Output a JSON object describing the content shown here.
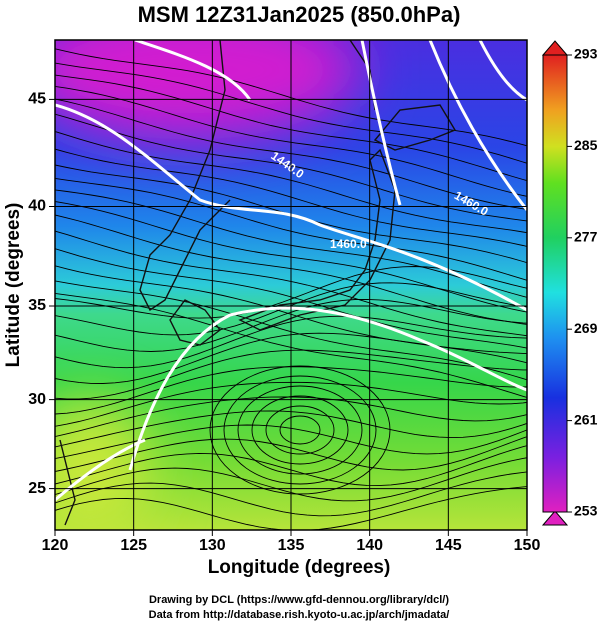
{
  "title": "MSM 12Z31Jan2025 (850.0hPa)",
  "map": {
    "x_label": "Longitude (degrees)",
    "y_label": "Latitude  (degrees)",
    "xlim": [
      120,
      150
    ],
    "ylim": [
      22.6,
      47.6
    ],
    "xticks": [
      120,
      125,
      130,
      135,
      140,
      145,
      150
    ],
    "yticks": [
      25,
      30,
      35,
      40,
      45
    ],
    "contour_labels": [
      "1440.0",
      "1460.0",
      "1460.0"
    ]
  },
  "colorbar": {
    "lim": [
      253,
      293
    ],
    "ticks": [
      253,
      261,
      269,
      277,
      285,
      293
    ]
  },
  "credits": [
    "Drawing by DCL (https://www.gfd-dennou.org/library/dcl/)",
    "Data from http://database.rish.kyoto-u.ac.jp/arch/jmadata/"
  ]
}
